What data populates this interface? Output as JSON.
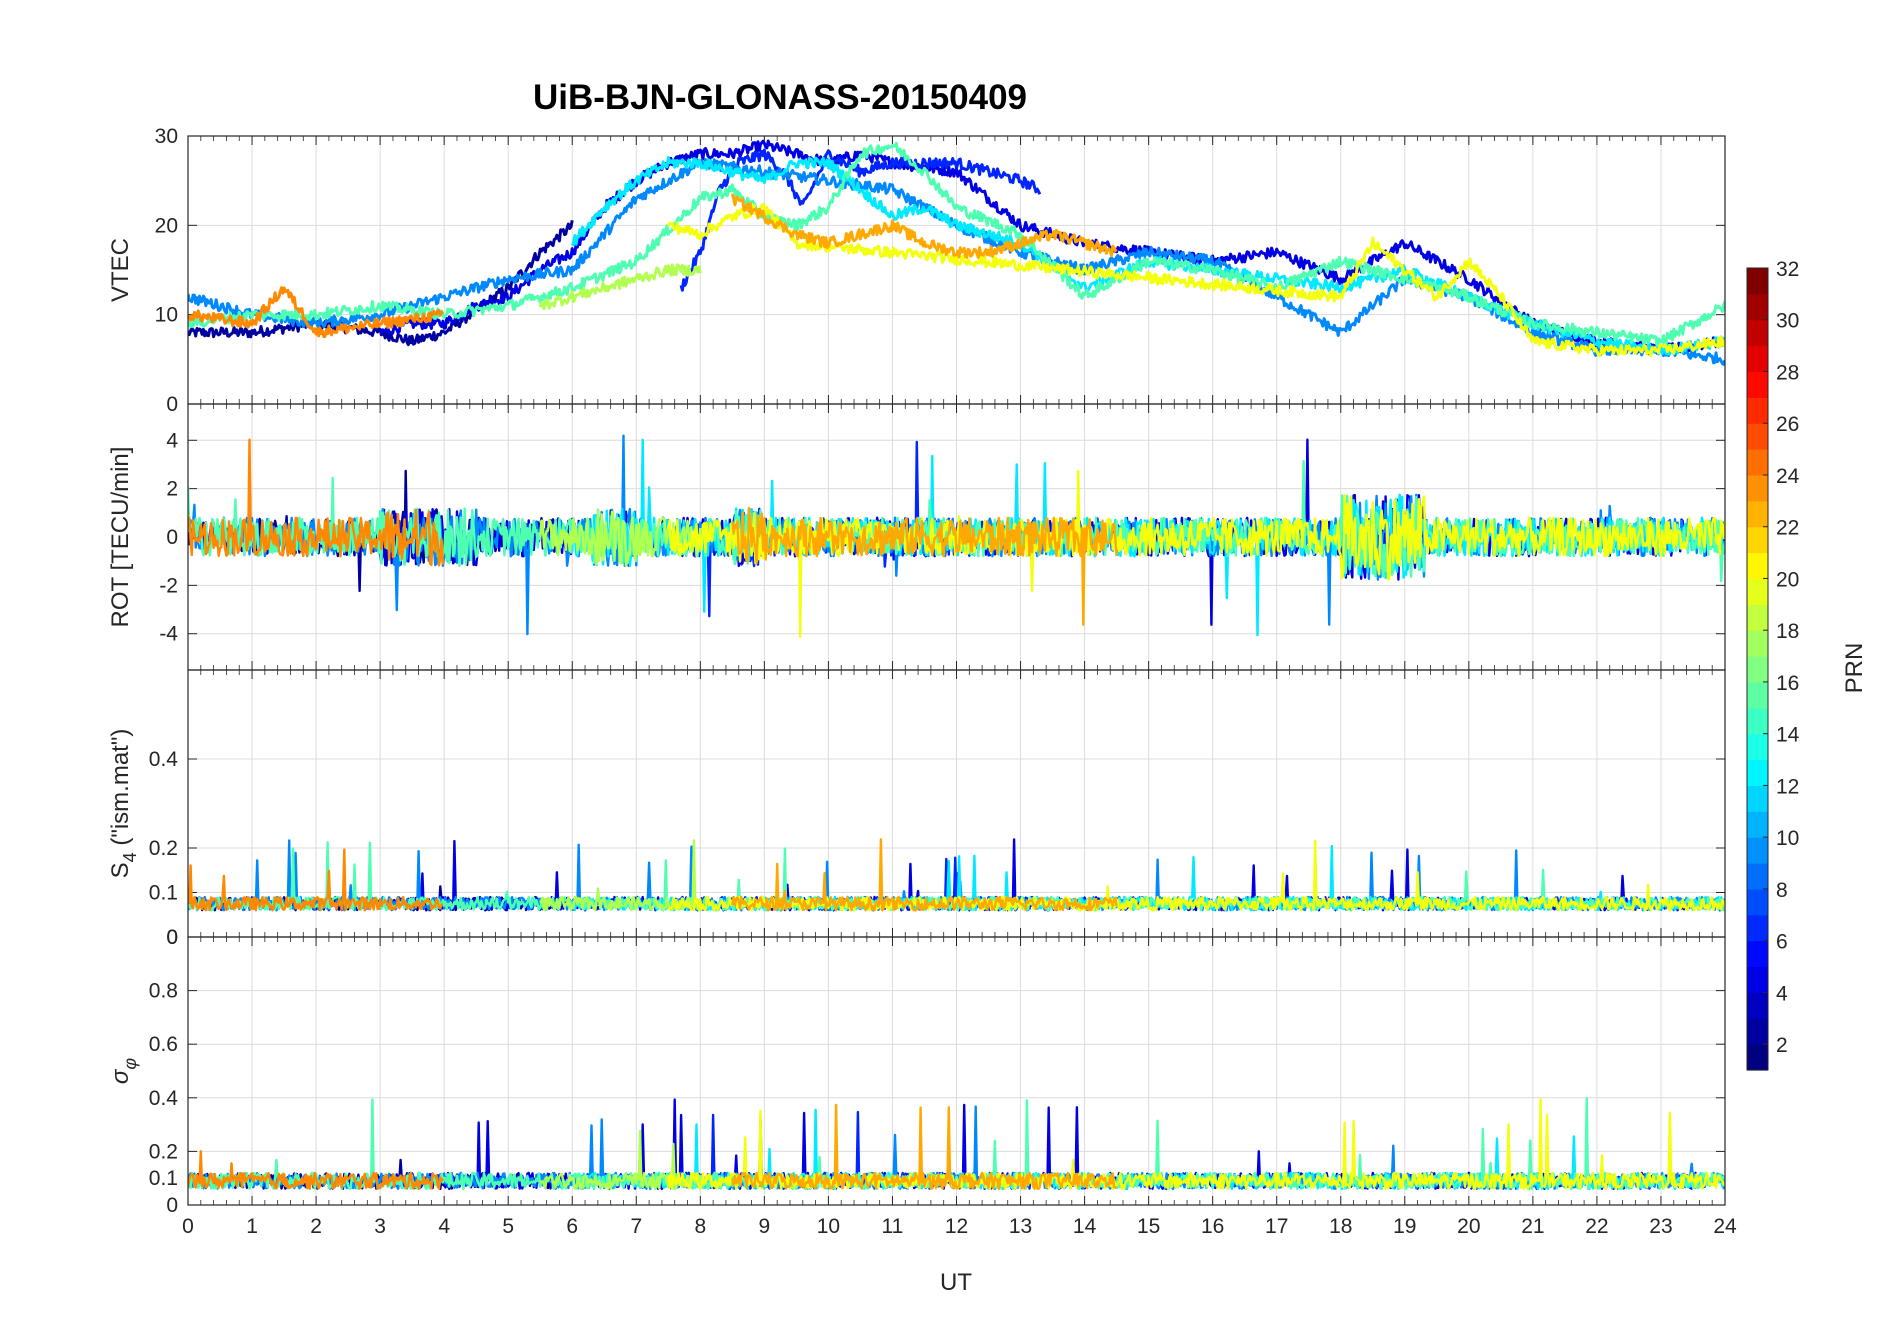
{
  "chart_data": {
    "type": "line",
    "title": "UiB-BJN-GLONASS-20150409",
    "xlabel": "UT",
    "xlim": [
      0,
      24
    ],
    "xticks": [
      "0",
      "1",
      "2",
      "3",
      "4",
      "5",
      "6",
      "7",
      "8",
      "9",
      "10",
      "11",
      "12",
      "13",
      "14",
      "15",
      "16",
      "17",
      "18",
      "19",
      "20",
      "21",
      "22",
      "23",
      "24"
    ],
    "colorbar": {
      "label": "PRN",
      "range": [
        1,
        32
      ],
      "ticks": [
        "2",
        "4",
        "6",
        "8",
        "10",
        "12",
        "14",
        "16",
        "18",
        "20",
        "22",
        "24",
        "26",
        "28",
        "30",
        "32"
      ],
      "colormap": "jet"
    },
    "panels": [
      {
        "id": "vtec",
        "ylabel": "VTEC",
        "ylim": [
          0,
          30
        ],
        "yticks": [
          "0",
          "10",
          "20",
          "30"
        ],
        "series": [
          {
            "prn": 2,
            "x": [
              0,
              1,
              2,
              3,
              3.5,
              4,
              5,
              5.5,
              6
            ],
            "y": [
              8,
              8,
              9,
              8,
              7,
              8,
              13,
              17,
              20
            ]
          },
          {
            "prn": 4,
            "x": [
              3,
              3.5,
              4,
              4.5,
              5,
              5.5,
              6,
              6.5,
              7,
              7.5,
              8,
              8.5,
              9,
              9.5,
              10,
              10.5,
              11,
              12,
              13,
              14,
              15,
              16,
              17,
              18,
              19,
              20,
              21,
              22,
              23,
              24
            ],
            "y": [
              8,
              9,
              9,
              11,
              12,
              15,
              17,
              22,
              25,
              27,
              28,
              28,
              29,
              28,
              27,
              28,
              27,
              26,
              20,
              18,
              17,
              16,
              17,
              14,
              18,
              14,
              9,
              7,
              6,
              7
            ]
          },
          {
            "prn": 6,
            "x": [
              7.7,
              8,
              8.3,
              8.6,
              9,
              9.3,
              9.6,
              10,
              10.5,
              11,
              12,
              13,
              13.3
            ],
            "y": [
              13,
              17,
              24,
              27,
              28,
              26,
              22,
              28,
              26,
              27,
              27,
              25,
              24
            ]
          },
          {
            "prn": 9,
            "x": [
              0,
              1,
              2,
              3,
              4,
              5,
              6,
              7,
              8,
              9,
              10,
              11,
              12,
              13,
              14,
              15,
              16,
              17,
              18,
              19,
              20,
              21,
              22,
              23,
              24
            ],
            "y": [
              12,
              10,
              9,
              10,
              12,
              14,
              15,
              23,
              27,
              26,
              25,
              24,
              20,
              17,
              15,
              17,
              16,
              12,
              8,
              14,
              12,
              8,
              6,
              6,
              5
            ]
          },
          {
            "prn": 12,
            "x": [
              6,
              6.5,
              7,
              7.5,
              8,
              8.5,
              9,
              9.5,
              10,
              10.5,
              11,
              11.5,
              12,
              13,
              14,
              15,
              16,
              17,
              18,
              19,
              20,
              21,
              22,
              23,
              24
            ],
            "y": [
              18,
              22,
              25,
              27,
              27,
              26,
              25,
              27,
              27,
              24,
              21,
              22,
              20,
              18,
              13,
              16,
              15,
              14,
              13,
              15,
              12,
              9,
              7,
              6,
              7
            ]
          },
          {
            "prn": 15,
            "x": [
              0,
              1,
              2,
              3,
              4,
              5,
              6,
              7,
              8,
              8.5,
              9,
              9.5,
              10,
              10.5,
              11,
              11.5,
              12,
              13,
              14,
              15,
              16,
              17,
              18,
              19,
              20,
              21,
              22,
              23,
              24
            ],
            "y": [
              9,
              10,
              10,
              11,
              10,
              11,
              13,
              16,
              23,
              24,
              21,
              20,
              22,
              28,
              29,
              26,
              22,
              19,
              12,
              16,
              15,
              13,
              16,
              14,
              12,
              9,
              8,
              7,
              11
            ]
          },
          {
            "prn": 18,
            "x": [
              5.5,
              6,
              6.5,
              7,
              7.5,
              8
            ],
            "y": [
              11,
              12,
              13,
              14,
              15,
              15
            ]
          },
          {
            "prn": 20,
            "x": [
              7.5,
              8,
              8.5,
              9,
              9.5,
              18,
              18.5,
              19,
              19.5,
              20,
              20.5,
              21,
              22,
              23,
              24
            ],
            "y": [
              20,
              19,
              21,
              22,
              18,
              12,
              18,
              15,
              12,
              16,
              12,
              7,
              6,
              6,
              7
            ]
          },
          {
            "prn": 23,
            "x": [
              8.5,
              9,
              9.5,
              10,
              10.5,
              11,
              11.5,
              12,
              12.5,
              13,
              13.5,
              14,
              14.5
            ],
            "y": [
              23,
              21,
              19,
              18,
              19,
              20,
              18,
              17,
              17,
              18,
              19,
              18,
              17
            ]
          },
          {
            "prn": 24,
            "x": [
              0,
              1,
              1.5,
              2,
              3,
              4
            ],
            "y": [
              10,
              9,
              13,
              8,
              9,
              10
            ]
          }
        ]
      },
      {
        "id": "rot",
        "ylabel": "ROT [TECU/min]",
        "ylim": [
          -5.5,
          5.5
        ],
        "yticks": [
          "-4",
          "-2",
          "0",
          "2",
          "4"
        ]
      },
      {
        "id": "s4",
        "ylabel": "S4 (\"ism.mat\")",
        "ylabel_main": "S",
        "ylabel_sub": "4",
        "ylabel_rest": " (\"ism.mat\")",
        "ylim": [
          0,
          0.6
        ],
        "yticks": [
          "0",
          "0.1",
          "0.2",
          "0.4"
        ]
      },
      {
        "id": "sigma",
        "ylabel": "σφ",
        "ylabel_main": "σ",
        "ylabel_sub": "φ",
        "ylim": [
          0,
          1
        ],
        "yticks": [
          "0",
          "0.1",
          "0.2",
          "0.4",
          "0.6",
          "0.8"
        ],
        "s4_bottom_tick": "0"
      }
    ]
  }
}
